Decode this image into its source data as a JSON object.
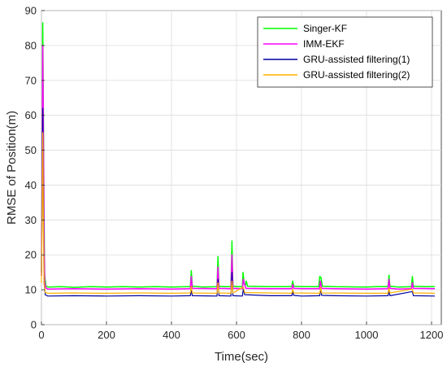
{
  "chart_data": {
    "type": "line",
    "title": "",
    "xlabel": "Time(sec)",
    "ylabel": "RMSE of Position(m)",
    "xlim": [
      0,
      1230
    ],
    "ylim": [
      0,
      90
    ],
    "xticks": [
      0,
      200,
      400,
      600,
      800,
      1000,
      1200
    ],
    "yticks": [
      0,
      10,
      20,
      30,
      40,
      50,
      60,
      70,
      80,
      90
    ],
    "grid": true,
    "legend_position": "top-right",
    "series": [
      {
        "name": "Singer-KF",
        "color": "#00ff00",
        "points": [
          [
            0,
            15
          ],
          [
            2,
            40
          ],
          [
            4,
            86.5
          ],
          [
            6,
            60
          ],
          [
            8,
            30
          ],
          [
            10,
            14
          ],
          [
            14,
            11
          ],
          [
            20,
            10.8
          ],
          [
            60,
            10.9
          ],
          [
            100,
            10.7
          ],
          [
            150,
            10.9
          ],
          [
            200,
            10.8
          ],
          [
            250,
            10.9
          ],
          [
            300,
            10.8
          ],
          [
            350,
            10.9
          ],
          [
            400,
            10.8
          ],
          [
            450,
            10.9
          ],
          [
            458,
            10.9
          ],
          [
            461,
            15.5
          ],
          [
            464,
            11
          ],
          [
            500,
            10.8
          ],
          [
            540,
            10.9
          ],
          [
            543,
            19.5
          ],
          [
            546,
            11
          ],
          [
            560,
            10.9
          ],
          [
            583,
            10.9
          ],
          [
            586,
            24
          ],
          [
            589,
            11
          ],
          [
            600,
            10.9
          ],
          [
            618,
            10.9
          ],
          [
            620,
            15
          ],
          [
            624,
            11.5
          ],
          [
            628,
            11.5
          ],
          [
            630,
            12.5
          ],
          [
            634,
            11
          ],
          [
            700,
            10.9
          ],
          [
            770,
            10.9
          ],
          [
            773,
            12.5
          ],
          [
            776,
            11
          ],
          [
            800,
            10.9
          ],
          [
            853,
            10.9
          ],
          [
            856,
            13.8
          ],
          [
            860,
            13.5
          ],
          [
            864,
            11
          ],
          [
            900,
            10.9
          ],
          [
            1000,
            10.8
          ],
          [
            1030,
            10.9
          ],
          [
            1066,
            10.9
          ],
          [
            1069,
            14.2
          ],
          [
            1072,
            11
          ],
          [
            1100,
            10.8
          ],
          [
            1138,
            10.9
          ],
          [
            1141,
            13.8
          ],
          [
            1144,
            11
          ],
          [
            1180,
            10.9
          ],
          [
            1210,
            10.9
          ]
        ]
      },
      {
        "name": "IMM-EKF",
        "color": "#ff00ff",
        "points": [
          [
            0,
            14
          ],
          [
            2,
            40
          ],
          [
            4,
            80
          ],
          [
            6,
            55
          ],
          [
            8,
            25
          ],
          [
            10,
            12
          ],
          [
            14,
            10.5
          ],
          [
            20,
            10.2
          ],
          [
            100,
            10.3
          ],
          [
            200,
            10.2
          ],
          [
            300,
            10.3
          ],
          [
            400,
            10.2
          ],
          [
            458,
            10.3
          ],
          [
            461,
            13.8
          ],
          [
            464,
            10.4
          ],
          [
            540,
            10.3
          ],
          [
            543,
            16.5
          ],
          [
            546,
            10.4
          ],
          [
            583,
            10.3
          ],
          [
            586,
            20
          ],
          [
            589,
            10.4
          ],
          [
            618,
            10.3
          ],
          [
            621,
            13
          ],
          [
            625,
            11.5
          ],
          [
            629,
            10.4
          ],
          [
            700,
            10.3
          ],
          [
            770,
            10.3
          ],
          [
            773,
            11.5
          ],
          [
            776,
            10.4
          ],
          [
            800,
            10.3
          ],
          [
            855,
            10.3
          ],
          [
            858,
            12.5
          ],
          [
            862,
            10.4
          ],
          [
            900,
            10.3
          ],
          [
            1000,
            10.2
          ],
          [
            1066,
            10.3
          ],
          [
            1069,
            13
          ],
          [
            1072,
            10.4
          ],
          [
            1100,
            10.2
          ],
          [
            1138,
            10.3
          ],
          [
            1141,
            12
          ],
          [
            1144,
            10.4
          ],
          [
            1210,
            10.3
          ]
        ]
      },
      {
        "name": "GRU-assisted filtering(1)",
        "color": "#0000a0",
        "points": [
          [
            0,
            14
          ],
          [
            2,
            35
          ],
          [
            4,
            62
          ],
          [
            6,
            35
          ],
          [
            8,
            12
          ],
          [
            12,
            8.5
          ],
          [
            20,
            8.2
          ],
          [
            100,
            8.3
          ],
          [
            200,
            8.2
          ],
          [
            300,
            8.3
          ],
          [
            400,
            8.2
          ],
          [
            458,
            8.3
          ],
          [
            461,
            10
          ],
          [
            464,
            8.3
          ],
          [
            540,
            8.2
          ],
          [
            543,
            13
          ],
          [
            546,
            8.3
          ],
          [
            583,
            8.2
          ],
          [
            586,
            15
          ],
          [
            589,
            8.3
          ],
          [
            618,
            8.2
          ],
          [
            621,
            10.2
          ],
          [
            625,
            8.6
          ],
          [
            700,
            8.3
          ],
          [
            770,
            8.3
          ],
          [
            773,
            9.5
          ],
          [
            776,
            8.4
          ],
          [
            800,
            8.2
          ],
          [
            856,
            8.3
          ],
          [
            859,
            10.5
          ],
          [
            862,
            8.4
          ],
          [
            900,
            8.3
          ],
          [
            1000,
            8.2
          ],
          [
            1066,
            8.3
          ],
          [
            1069,
            9.8
          ],
          [
            1072,
            8.3
          ],
          [
            1141,
            9.5
          ],
          [
            1144,
            8.3
          ],
          [
            1210,
            8.2
          ]
        ]
      },
      {
        "name": "GRU-assisted filtering(2)",
        "color": "#ffb000",
        "points": [
          [
            0,
            12
          ],
          [
            2,
            30
          ],
          [
            4,
            55
          ],
          [
            6,
            30
          ],
          [
            8,
            12
          ],
          [
            12,
            9.2
          ],
          [
            20,
            9
          ],
          [
            100,
            9.1
          ],
          [
            200,
            9
          ],
          [
            300,
            9.1
          ],
          [
            400,
            9
          ],
          [
            458,
            9.1
          ],
          [
            461,
            11
          ],
          [
            464,
            9.1
          ],
          [
            540,
            9
          ],
          [
            543,
            12
          ],
          [
            546,
            9.1
          ],
          [
            583,
            9
          ],
          [
            586,
            12.5
          ],
          [
            589,
            9.1
          ],
          [
            621,
            10.8
          ],
          [
            625,
            9.2
          ],
          [
            700,
            9.1
          ],
          [
            770,
            9
          ],
          [
            773,
            10.2
          ],
          [
            776,
            9.1
          ],
          [
            856,
            9
          ],
          [
            859,
            10.8
          ],
          [
            862,
            9.1
          ],
          [
            1000,
            9
          ],
          [
            1066,
            9
          ],
          [
            1069,
            10.5
          ],
          [
            1072,
            9.1
          ],
          [
            1141,
            10.2
          ],
          [
            1144,
            9.1
          ],
          [
            1210,
            9
          ]
        ]
      }
    ]
  }
}
